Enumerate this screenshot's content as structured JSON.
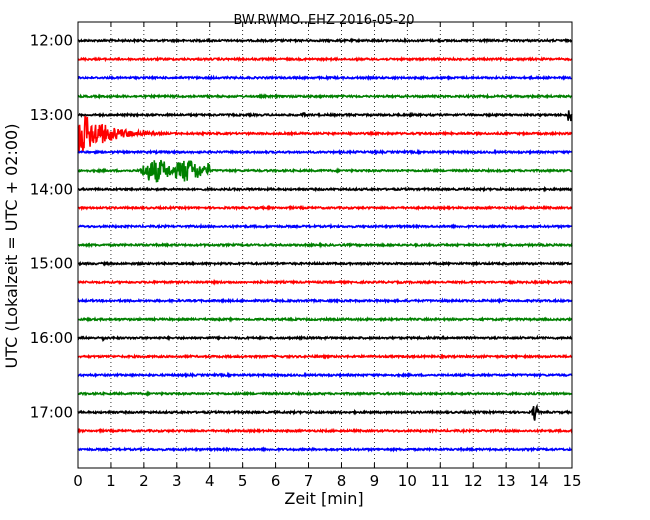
{
  "chart_data": {
    "type": "line",
    "title": "BW.RWMO..EHZ 2016-05-20",
    "xlabel": "Zeit  [min]",
    "ylabel": "UTC (Lokalzeit = UTC + 02:00)",
    "xlim": [
      0,
      15
    ],
    "ylim_minutes_from_1200": [
      -15,
      345
    ],
    "x_ticks": [
      "0",
      "1",
      "2",
      "3",
      "4",
      "5",
      "6",
      "7",
      "8",
      "9",
      "10",
      "11",
      "12",
      "13",
      "14",
      "15"
    ],
    "y_ticks": [
      "12:00",
      "13:00",
      "14:00",
      "15:00",
      "16:00",
      "17:00"
    ],
    "grid": "vertical dotted at each minute",
    "trace_colors": [
      "#000000",
      "#ff0000",
      "#0000ff",
      "#008000"
    ],
    "trace_start_minutes": [
      0,
      15,
      30,
      45,
      60,
      75,
      90,
      105,
      120,
      135,
      150,
      165,
      180,
      195,
      210,
      225,
      240,
      255,
      270,
      285,
      300,
      315,
      330
    ],
    "events": [
      {
        "trace": 5,
        "x_start": 0,
        "x_end": 4.5,
        "amplitude": 24,
        "kind": "earthquake"
      },
      {
        "trace": 7,
        "x_start": 1.9,
        "x_end": 4.0,
        "amplitude": 12,
        "kind": "wave-packet"
      },
      {
        "trace": 4,
        "x_start": 14.85,
        "x_end": 15,
        "amplitude": 10,
        "kind": "spike"
      },
      {
        "trace": 20,
        "x_start": 13.75,
        "x_end": 14.0,
        "amplitude": 9,
        "kind": "spike"
      },
      {
        "trace": 4,
        "x_start": 6.8,
        "x_end": 6.9,
        "amplitude": 3,
        "kind": "spike"
      },
      {
        "trace": 16,
        "x_start": 0.7,
        "x_end": 0.9,
        "amplitude": 3,
        "kind": "spike"
      }
    ]
  }
}
